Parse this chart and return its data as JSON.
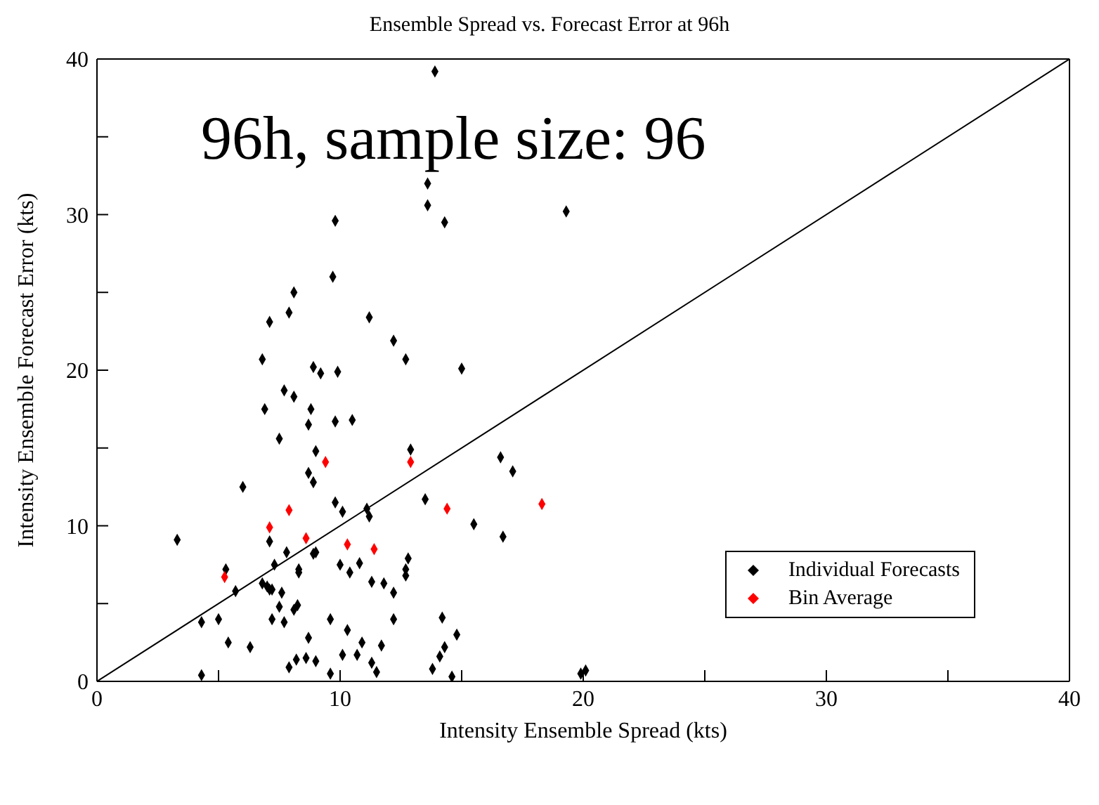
{
  "chart_data": {
    "type": "scatter",
    "title": "Ensemble Spread vs. Forecast Error at 96h",
    "xlabel": "Intensity Ensemble Spread (kts)",
    "ylabel": "Intensity Ensemble Forecast Error (kts)",
    "annotations": [
      "96h, sample size: 96"
    ],
    "xlim": [
      0,
      40
    ],
    "ylim": [
      0,
      40
    ],
    "xticks": [
      0,
      {
        "value": 5,
        "label": null
      },
      10,
      {
        "value": 15,
        "label": null
      },
      20,
      {
        "value": 25,
        "label": null
      },
      30,
      {
        "value": 35,
        "label": null
      },
      40
    ],
    "yticks": [
      0,
      {
        "value": 5,
        "label": null
      },
      10,
      {
        "value": 15,
        "label": null
      },
      20,
      {
        "value": 25,
        "label": null
      },
      30,
      {
        "value": 35,
        "label": null
      },
      40
    ],
    "grid": false,
    "legend": "bottom right",
    "marker": "diamond",
    "series": [
      {
        "name": "Individual Forecasts",
        "color": "#000000",
        "x": [
          12.2,
          6.8,
          12.7,
          8.9,
          9.2,
          9.9,
          7.7,
          8.1,
          6.9,
          8.8,
          8.7,
          9.8,
          10.5,
          7.5,
          9.0,
          12.9,
          6.0,
          8.7,
          8.9,
          9.8,
          10.1,
          11.1,
          11.2,
          13.5,
          3.3,
          7.1,
          7.8,
          8.9,
          9.0,
          10.0,
          10.4,
          10.8,
          7.3,
          8.3,
          8.3,
          5.3,
          12.8,
          12.7,
          12.7,
          5.7,
          6.8,
          7.0,
          7.1,
          7.2,
          7.6,
          11.3,
          11.8,
          12.2,
          7.5,
          8.1,
          8.25,
          4.3,
          5.0,
          7.2,
          7.7,
          9.6,
          10.3,
          12.2,
          14.2,
          5.4,
          6.3,
          8.7,
          10.9,
          11.7,
          14.3,
          7.9,
          8.2,
          8.6,
          9.0,
          10.1,
          10.7,
          11.3,
          11.5,
          9.6,
          14.1,
          13.8,
          4.3,
          15.0,
          16.6,
          17.1,
          15.5,
          16.7,
          14.8,
          14.6,
          19.9,
          20.1,
          13.9,
          13.6,
          13.6,
          14.3,
          19.3,
          9.8,
          9.7,
          8.1,
          7.9,
          7.1,
          11.2
        ],
        "values": [
          21.9,
          20.7,
          20.7,
          20.2,
          19.8,
          19.9,
          18.7,
          18.3,
          17.5,
          17.5,
          16.5,
          16.7,
          16.8,
          15.6,
          14.8,
          14.9,
          12.5,
          13.4,
          12.8,
          11.5,
          10.9,
          11.1,
          10.6,
          11.7,
          9.1,
          9.0,
          8.3,
          8.2,
          8.3,
          7.5,
          7.0,
          7.6,
          7.5,
          7.2,
          7.0,
          7.2,
          7.9,
          7.2,
          6.8,
          5.8,
          6.3,
          6.1,
          5.9,
          5.9,
          5.7,
          6.4,
          6.3,
          5.7,
          4.8,
          4.6,
          4.9,
          3.8,
          4.0,
          4.0,
          3.8,
          4.0,
          3.3,
          4.0,
          4.1,
          2.5,
          2.2,
          2.8,
          2.5,
          2.3,
          2.2,
          0.9,
          1.4,
          1.5,
          1.3,
          1.7,
          1.7,
          1.2,
          0.6,
          0.5,
          1.6,
          0.8,
          0.4,
          20.1,
          14.4,
          13.5,
          10.1,
          9.3,
          3.0,
          0.3,
          0.5,
          0.7,
          39.2,
          32.0,
          30.6,
          29.5,
          30.2,
          29.6,
          26.0,
          25.0,
          23.7,
          23.1,
          23.4
        ]
      },
      {
        "name": "Bin Average",
        "color": "#ff0000",
        "x": [
          5.25,
          7.1,
          7.9,
          8.6,
          9.4,
          10.3,
          11.4,
          12.9,
          14.4,
          18.3
        ],
        "values": [
          6.7,
          9.9,
          11.0,
          9.2,
          14.1,
          8.8,
          8.5,
          14.1,
          11.1,
          11.4
        ]
      },
      {
        "type": "line",
        "color": "#000000",
        "marker": "none",
        "line_style": "solid",
        "x": [
          0,
          40
        ],
        "values": [
          0,
          40
        ]
      }
    ]
  }
}
